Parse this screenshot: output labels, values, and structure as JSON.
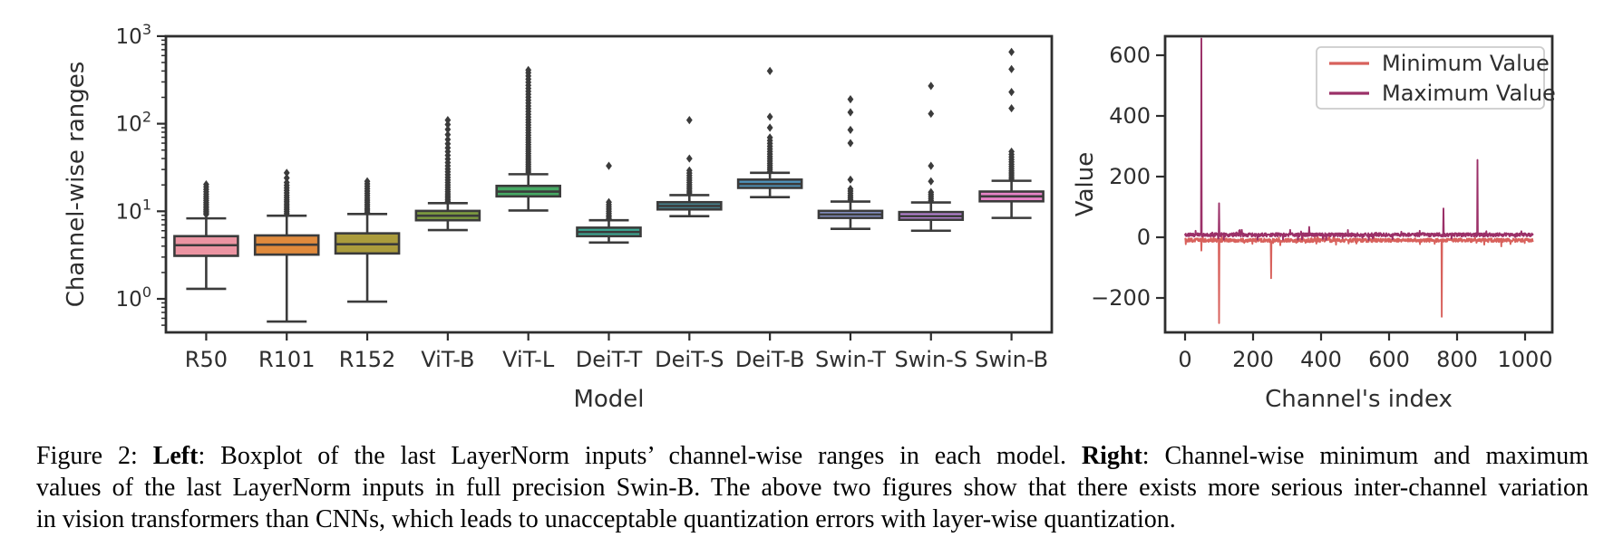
{
  "figure": {
    "caption": {
      "lines": [
        {
          "segments": [
            {
              "text": "Figure 2: ",
              "bold": false
            },
            {
              "text": "Left",
              "bold": true
            },
            {
              "text": ": Boxplot of the last LayerNorm inputs’ channel-wise ranges in each model. ",
              "bold": false
            },
            {
              "text": "Right",
              "bold": true
            },
            {
              "text": ": Channel-wise minimum and maximum",
              "bold": false
            }
          ]
        },
        {
          "segments": [
            {
              "text": "values of the last LayerNorm inputs in full precision Swin-B. The above two figures show that there exists more serious inter-channel variation",
              "bold": false
            }
          ]
        },
        {
          "segments": [
            {
              "text": "in vision transformers than CNNs, which leads to unacceptable quantization errors with layer-wise quantization.",
              "bold": false
            }
          ]
        }
      ]
    }
  },
  "colors": {
    "axis": "#2e2e2e",
    "box_edge": "#3b3b3b",
    "flier": "#3b3b3b",
    "legend_border": "#cccccc",
    "min_line": "#d8615c",
    "max_line": "#9b3068"
  },
  "chart_data": [
    {
      "type": "box",
      "title": "",
      "xlabel": "Model",
      "ylabel": "Channel-wise ranges",
      "yscale": "log",
      "ylim": [
        0.41,
        1000
      ],
      "ytick_exponents": [
        3,
        2,
        1,
        0
      ],
      "models": [
        {
          "label": "R50",
          "color": "#ec94a2",
          "whislo": 1.3,
          "q1": 3.1,
          "med": 4.1,
          "q3": 5.2,
          "whishi": 8.3,
          "outliers": [
            9.2,
            9.6,
            10,
            10.4,
            10.9,
            11.4,
            12,
            12.6,
            13.3,
            14,
            14.8,
            15.7,
            16.7,
            17.8,
            19,
            20.3
          ]
        },
        {
          "label": "R101",
          "color": "#e08a3c",
          "whislo": 0.55,
          "q1": 3.2,
          "med": 4.15,
          "q3": 5.3,
          "whishi": 8.9,
          "outliers": [
            9.4,
            9.9,
            10.4,
            10.9,
            11.5,
            12.1,
            12.8,
            13.5,
            14.3,
            15.2,
            16.2,
            17.3,
            18.5,
            19.8,
            21.3,
            24,
            27.5
          ]
        },
        {
          "label": "R152",
          "color": "#ab9c3c",
          "whislo": 0.93,
          "q1": 3.3,
          "med": 4.2,
          "q3": 5.6,
          "whishi": 9.3,
          "outliers": [
            9.8,
            10.3,
            10.8,
            11.4,
            12,
            12.7,
            13.4,
            14.2,
            15.1,
            16,
            17,
            18.1,
            19.3,
            20.6,
            22
          ]
        },
        {
          "label": "ViT-B",
          "color": "#7d9a40",
          "whislo": 6.1,
          "q1": 7.9,
          "med": 8.9,
          "q3": 10.1,
          "whishi": 12.4,
          "outliers": [
            13,
            13.6,
            14.3,
            15,
            15.8,
            16.7,
            17.7,
            18.8,
            20,
            21.3,
            22.8,
            24.4,
            26.2,
            28.2,
            30.4,
            33,
            36,
            39.5,
            43.5,
            48,
            53,
            59,
            66,
            75,
            86,
            98,
            110
          ]
        },
        {
          "label": "ViT-L",
          "color": "#46a864",
          "whislo": 10.2,
          "q1": 14.8,
          "med": 16.8,
          "q3": 19.5,
          "whishi": 26.5,
          "outliers": [
            28,
            29.5,
            31,
            32.7,
            34.5,
            36.4,
            38.5,
            40.7,
            43,
            45.6,
            48.3,
            51.2,
            54.3,
            57.7,
            61.3,
            65.2,
            69.4,
            74,
            79,
            84.5,
            90.3,
            96.7,
            103.6,
            111,
            119.2,
            128.1,
            137.8,
            148.3,
            159.7,
            172.1,
            185.6,
            200.3,
            216.4,
            234,
            253.3,
            274.4,
            297.5,
            322.9,
            350.8,
            381.5,
            410
          ]
        },
        {
          "label": "DeiT-T",
          "color": "#3dab96",
          "whislo": 4.4,
          "q1": 5.2,
          "med": 5.8,
          "q3": 6.5,
          "whishi": 7.9,
          "outliers": [
            8.2,
            8.6,
            9,
            9.5,
            10,
            10.6,
            11.2,
            11.9,
            12.7,
            33
          ]
        },
        {
          "label": "DeiT-S",
          "color": "#46828e",
          "whislo": 8.8,
          "q1": 10.5,
          "med": 11.5,
          "q3": 12.7,
          "whishi": 15.3,
          "outliers": [
            16.2,
            17,
            18,
            19,
            20.1,
            21.3,
            22.6,
            24,
            25.6,
            27.3,
            29.2,
            40,
            110
          ]
        },
        {
          "label": "DeiT-B",
          "color": "#4f94bc",
          "whislo": 14.5,
          "q1": 18.5,
          "med": 20.5,
          "q3": 23,
          "whishi": 27.5,
          "outliers": [
            28.5,
            30,
            31.6,
            33.4,
            35.3,
            37.4,
            39.7,
            42.2,
            45,
            48,
            51.5,
            55.3,
            59.5,
            64.2,
            69.5,
            90,
            120,
            400
          ]
        },
        {
          "label": "Swin-T",
          "color": "#929eda",
          "whislo": 6.3,
          "q1": 8.4,
          "med": 9.2,
          "q3": 10.1,
          "whishi": 12.9,
          "outliers": [
            13.6,
            14.3,
            15.1,
            16,
            17,
            18,
            23,
            60,
            85,
            135,
            190
          ]
        },
        {
          "label": "Swin-S",
          "color": "#bb85d8",
          "whislo": 6.0,
          "q1": 8.0,
          "med": 8.8,
          "q3": 9.8,
          "whishi": 12.6,
          "outliers": [
            13.3,
            14,
            14.8,
            15.6,
            16.5,
            22,
            33,
            130,
            270
          ]
        },
        {
          "label": "Swin-B",
          "color": "#e784c8",
          "whislo": 8.4,
          "q1": 13,
          "med": 14.8,
          "q3": 16.8,
          "whishi": 22.3,
          "outliers": [
            23.5,
            24.7,
            26,
            27.4,
            28.9,
            30.6,
            32.4,
            34.4,
            36.6,
            39,
            41.7,
            44.6,
            48,
            150,
            230,
            420,
            660
          ]
        }
      ]
    },
    {
      "type": "line",
      "title": "",
      "xlabel": "Channel's index",
      "ylabel": "Value",
      "xlim": [
        -60,
        1080
      ],
      "ylim": [
        -316,
        660
      ],
      "yticks": [
        600,
        400,
        200,
        0,
        -200
      ],
      "xticks": [
        0,
        200,
        400,
        600,
        800,
        1000
      ],
      "n_channels": 1024,
      "legend": {
        "position": "upper right"
      },
      "series": [
        {
          "name": "Minimum Value",
          "color": "#d8615c",
          "baseline": -10,
          "noise_amplitude": 8,
          "spikes": [
            {
              "channel": 48,
              "value": -44
            },
            {
              "channel": 100,
              "value": -283
            },
            {
              "channel": 253,
              "value": -135
            },
            {
              "channel": 755,
              "value": -262
            },
            {
              "channel": 930,
              "value": -30
            }
          ]
        },
        {
          "name": "Maximum Value",
          "color": "#9b3068",
          "baseline": 8,
          "noise_amplitude": 8,
          "spikes": [
            {
              "channel": 48,
              "value": 655
            },
            {
              "channel": 100,
              "value": 112
            },
            {
              "channel": 365,
              "value": 34
            },
            {
              "channel": 760,
              "value": 95
            },
            {
              "channel": 860,
              "value": 255
            }
          ]
        }
      ]
    }
  ]
}
